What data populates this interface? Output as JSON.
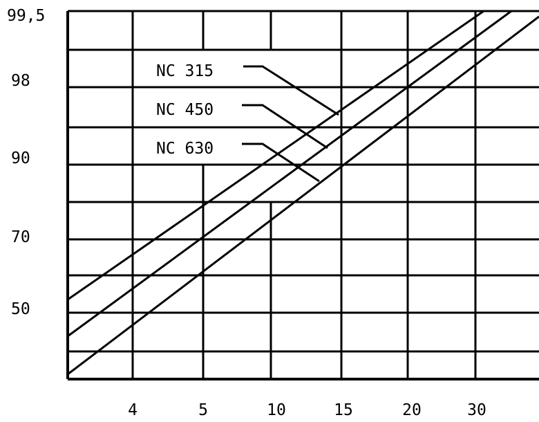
{
  "chart_data": {
    "type": "line",
    "title": "",
    "xlabel": "",
    "ylabel": "",
    "x_ticks": [
      "4",
      "5",
      "10",
      "15",
      "20",
      "30"
    ],
    "y_ticks": [
      "99,5",
      "98",
      "90",
      "70",
      "50"
    ],
    "grid": true,
    "series": [
      {
        "name": "NC 315",
        "x": [
          3.3,
          38
        ],
        "y": [
          43,
          99.7
        ]
      },
      {
        "name": "NC 450",
        "x": [
          3.3,
          38
        ],
        "y": [
          36,
          99.2
        ]
      },
      {
        "name": "NC 630",
        "x": [
          3.3,
          38
        ],
        "y": [
          30,
          98.6
        ]
      }
    ],
    "colors": {
      "line": "#000000",
      "background": "#ffffff"
    }
  }
}
